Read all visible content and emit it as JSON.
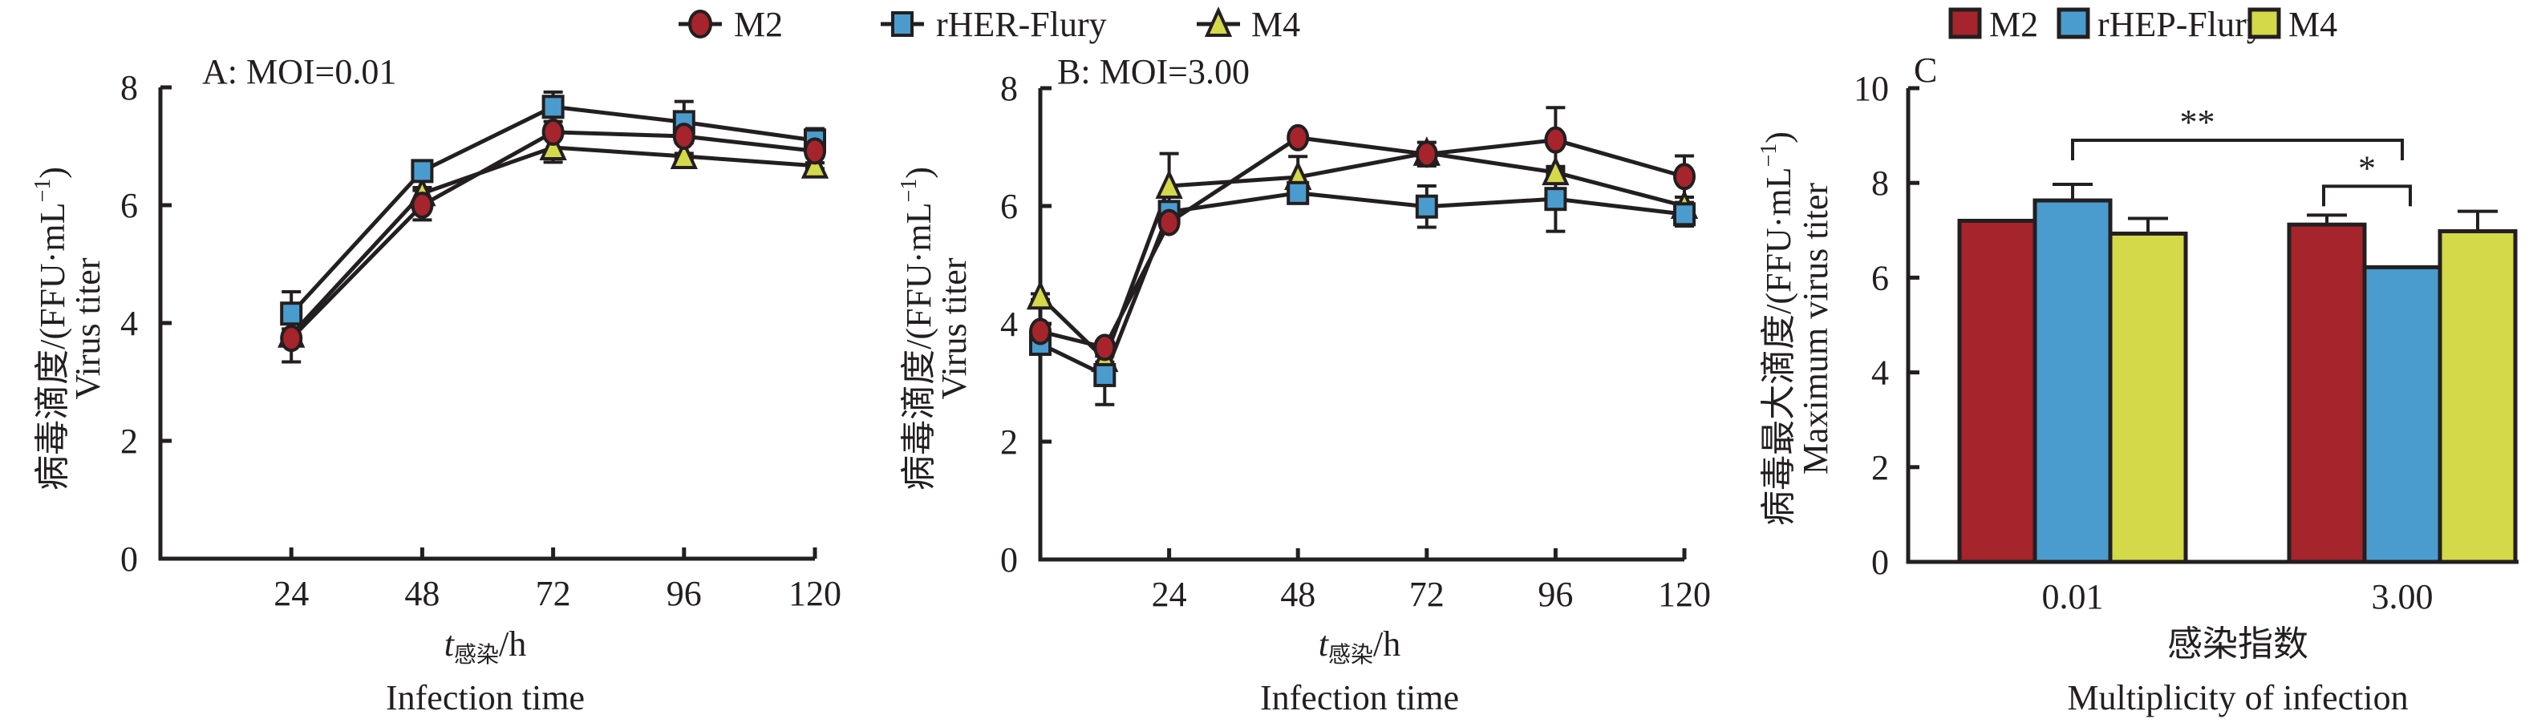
{
  "legend_line": {
    "items": [
      "M2",
      "rHER-Flury",
      "M4"
    ]
  },
  "legend_bar": {
    "items": [
      "M2",
      "rHEP-Flury",
      "M4"
    ]
  },
  "colors": {
    "M2": "#a6242b",
    "rHER": "#4a9ccf",
    "M4": "#d4d94a",
    "ink": "#231f20"
  },
  "chart_data": [
    {
      "type": "line",
      "panel_label": "A: MOI=0.01",
      "ylabel_cn": "病毒滴度/(FFU·mL",
      "ylabel_sup": "−1",
      "ylabel_close": ")",
      "ylabel_en": "Virus titer",
      "xlabel_t": "t",
      "xlabel_sub": "感染",
      "xlabel_unit": "/h",
      "xlabel_en": "Infection time",
      "ylim": [
        0,
        8
      ],
      "xlim": [
        0,
        120
      ],
      "yticks": [
        "0",
        "2",
        "4",
        "6",
        "8"
      ],
      "xticks": [
        "24",
        "48",
        "72",
        "96",
        "120"
      ],
      "x": [
        24,
        48,
        72,
        96,
        120
      ],
      "series": [
        {
          "name": "M2",
          "marker": "circle",
          "values": [
            3.74,
            6.0,
            7.24,
            7.17,
            6.92
          ],
          "err": [
            0.4,
            0.25,
            0.1,
            0.1,
            0.1
          ]
        },
        {
          "name": "rHER-Flury",
          "marker": "square",
          "values": [
            4.16,
            6.58,
            7.67,
            7.41,
            7.1
          ],
          "err": [
            0.37,
            0.05,
            0.25,
            0.35,
            0.2
          ]
        },
        {
          "name": "M4",
          "marker": "triangle",
          "values": [
            3.8,
            6.2,
            6.98,
            6.83,
            6.67
          ],
          "err": [
            0.1,
            0.1,
            0.25,
            0.05,
            0.05
          ]
        }
      ]
    },
    {
      "type": "line",
      "panel_label": "B: MOI=3.00",
      "ylabel_cn": "病毒滴度/(FFU·mL",
      "ylabel_sup": "−1",
      "ylabel_close": ")",
      "ylabel_en": "Virus titer",
      "xlabel_t": "t",
      "xlabel_sub": "感染",
      "xlabel_unit": "/h",
      "xlabel_en": "Infection time",
      "ylim": [
        0,
        8
      ],
      "xlim": [
        0,
        120
      ],
      "yticks": [
        "0",
        "2",
        "4",
        "6",
        "8"
      ],
      "xticks": [
        "24",
        "48",
        "72",
        "96",
        "120"
      ],
      "x": [
        0,
        12,
        24,
        48,
        72,
        96,
        120
      ],
      "series": [
        {
          "name": "M2",
          "marker": "circle",
          "values": [
            3.87,
            3.6,
            5.72,
            7.16,
            6.88,
            7.12,
            6.5
          ],
          "err": [
            0.05,
            0.1,
            0.05,
            0.05,
            0.2,
            0.55,
            0.35
          ]
        },
        {
          "name": "rHER-Flury",
          "marker": "square",
          "values": [
            3.66,
            3.13,
            5.9,
            6.22,
            5.99,
            6.12,
            5.86
          ],
          "err": [
            0.05,
            0.5,
            0.05,
            0.05,
            0.35,
            0.55,
            0.2
          ]
        },
        {
          "name": "M4",
          "marker": "triangle",
          "values": [
            4.46,
            3.4,
            6.34,
            6.49,
            6.9,
            6.57,
            6.0
          ],
          "err": [
            0.05,
            0.05,
            0.55,
            0.35,
            0.05,
            0.05,
            0.05
          ]
        }
      ]
    },
    {
      "type": "bar",
      "panel_label": "C",
      "ylabel_cn": "病毒最大滴度/(FFU·mL",
      "ylabel_sup": "−1",
      "ylabel_close": ")",
      "ylabel_en": "Maximum virus titer",
      "xlabel_cn": "感染指数",
      "xlabel_en": "Multiplicity of infection",
      "ylim": [
        0,
        10
      ],
      "yticks": [
        "0",
        "2",
        "4",
        "6",
        "8",
        "10"
      ],
      "categories": [
        "0.01",
        "3.00"
      ],
      "series": [
        {
          "name": "M2",
          "values": [
            7.2,
            7.12
          ],
          "err": [
            0,
            0.2
          ]
        },
        {
          "name": "rHEP-Flury",
          "values": [
            7.63,
            6.22
          ],
          "err": [
            0.34,
            0
          ]
        },
        {
          "name": "M4",
          "values": [
            6.93,
            6.98
          ],
          "err": [
            0.32,
            0.42
          ]
        }
      ],
      "significance": [
        {
          "label": "**",
          "from": "0.01 rHEP-Flury",
          "to": "3.00 rHEP-Flury",
          "level": 8.9
        },
        {
          "label": "*",
          "from": "3.00 M2",
          "to": "3.00 rHEP-Flury",
          "level": 7.93
        }
      ]
    }
  ]
}
